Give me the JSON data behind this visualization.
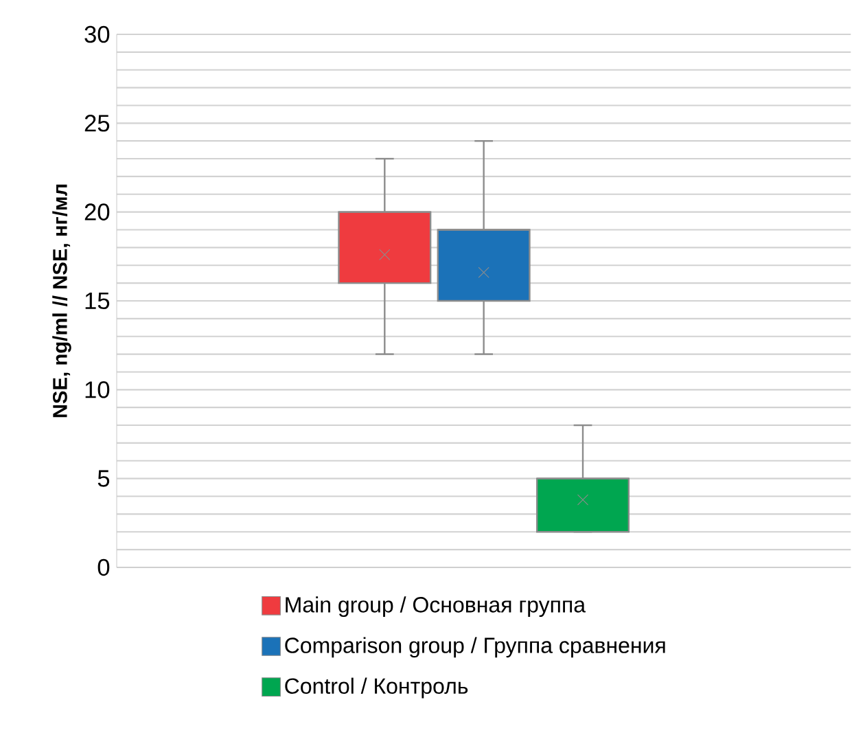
{
  "chart_data": {
    "type": "box",
    "ylabel": "NSE, ng/ml // NSE, нг/мл",
    "categories": [
      null
    ],
    "ylim": [
      0,
      30
    ],
    "yticks": [
      0,
      {
        "value": 1,
        "label": null
      },
      {
        "value": 2,
        "label": null
      },
      {
        "value": 3,
        "label": null
      },
      {
        "value": 4,
        "label": null
      },
      5,
      {
        "value": 6,
        "label": null
      },
      {
        "value": 7,
        "label": null
      },
      {
        "value": 8,
        "label": null
      },
      {
        "value": 9,
        "label": null
      },
      10,
      {
        "value": 11,
        "label": null
      },
      {
        "value": 12,
        "label": null
      },
      {
        "value": 13,
        "label": null
      },
      {
        "value": 14,
        "label": null
      },
      15,
      {
        "value": 16,
        "label": null
      },
      {
        "value": 17,
        "label": null
      },
      {
        "value": 18,
        "label": null
      },
      {
        "value": 19,
        "label": null
      },
      20,
      {
        "value": 21,
        "label": null
      },
      {
        "value": 22,
        "label": null
      },
      {
        "value": 23,
        "label": null
      },
      {
        "value": 24,
        "label": null
      },
      25,
      {
        "value": 26,
        "label": null
      },
      {
        "value": 27,
        "label": null
      },
      {
        "value": 28,
        "label": null
      },
      {
        "value": 29,
        "label": null
      },
      30
    ],
    "grid": "y",
    "legend": "bottom",
    "series": [
      {
        "name": "Main group / Основная группа",
        "color": "#ef3b3f",
        "boxes": [
          {
            "low": 12,
            "q1": 16,
            "median": 20,
            "q3": 20,
            "high": 23,
            "mean": 17.6
          }
        ]
      },
      {
        "name": "Comparison group / Группа сравнения",
        "color": "#1b72b8",
        "boxes": [
          {
            "low": 12,
            "q1": 15,
            "median": 19,
            "q3": 19,
            "high": 24,
            "mean": 16.6
          }
        ]
      },
      {
        "name": "Control / Контроль",
        "color": "#00a650",
        "boxes": [
          {
            "low": 2,
            "q1": 2,
            "median": 5,
            "q3": 5,
            "high": 8,
            "mean": 3.8
          }
        ]
      }
    ]
  }
}
